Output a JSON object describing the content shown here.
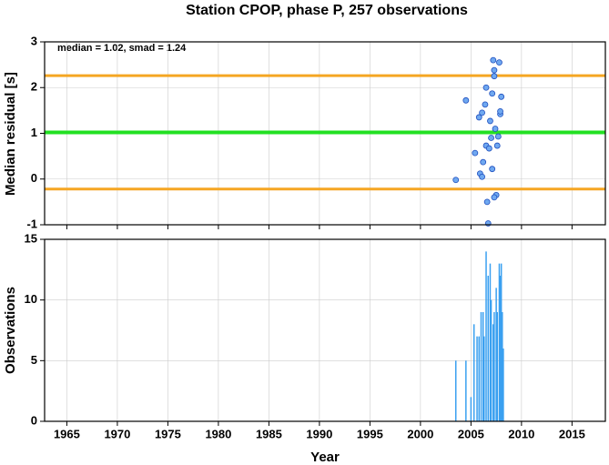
{
  "chart_data": [
    {
      "type": "scatter",
      "title": "Station CPOP, phase P, 257 observations",
      "ylabel": "Median residual [s]",
      "annotation": "median = 1.02, smad = 1.24",
      "xlim": [
        1962.8,
        2018.3
      ],
      "ylim": [
        -1,
        3
      ],
      "yticks": [
        -1,
        0,
        1,
        2,
        3
      ],
      "grid": true,
      "color": "#6fa8f0",
      "edgecolor": "#1f4fbf",
      "lines": [
        {
          "value": 2.26,
          "color": "#f5a623"
        },
        {
          "value": 1.02,
          "color": "#22e022"
        },
        {
          "value": -0.22,
          "color": "#f5a623"
        }
      ],
      "x": [
        2003.5,
        2004.5,
        2005.4,
        2005.9,
        2006.1,
        2005.8,
        2006.1,
        2006.2,
        2006.4,
        2006.5,
        2006.5,
        2006.6,
        2006.7,
        2006.8,
        2006.9,
        2007.0,
        2007.1,
        2007.1,
        2007.2,
        2007.3,
        2007.3,
        2007.4,
        2007.5,
        2007.3,
        2007.6,
        2007.8,
        2007.7,
        2007.9,
        2007.9,
        2008.0
      ],
      "values": [
        -0.02,
        1.72,
        0.57,
        0.12,
        0.05,
        1.35,
        1.45,
        0.37,
        1.63,
        0.73,
        2.0,
        -0.5,
        -0.97,
        0.67,
        1.27,
        0.9,
        1.87,
        0.22,
        2.6,
        2.38,
        2.25,
        1.1,
        -0.35,
        -0.4,
        0.73,
        2.55,
        0.93,
        1.42,
        1.48,
        1.8
      ]
    },
    {
      "type": "bar",
      "xlabel": "Year",
      "ylabel": "Observations",
      "xlim": [
        1962.8,
        2018.3
      ],
      "xticks": [
        1965,
        1970,
        1975,
        1980,
        1985,
        1990,
        1995,
        2000,
        2005,
        2010,
        2015
      ],
      "ylim": [
        0,
        15
      ],
      "yticks": [
        0,
        5,
        10,
        15
      ],
      "grid": true,
      "color": "#3aa0f0",
      "x": [
        2003.5,
        2004.5,
        2005.0,
        2005.3,
        2005.6,
        2005.8,
        2006.0,
        2006.2,
        2006.3,
        2006.5,
        2006.7,
        2006.9,
        2007.0,
        2007.2,
        2007.3,
        2007.5,
        2007.6,
        2007.8,
        2007.9,
        2008.0,
        2008.1,
        2008.2
      ],
      "values": [
        5,
        5,
        2,
        8,
        7,
        7,
        9,
        9,
        7,
        14,
        12,
        13,
        10,
        8,
        9,
        11,
        9,
        13,
        12,
        13,
        9,
        6
      ]
    }
  ]
}
